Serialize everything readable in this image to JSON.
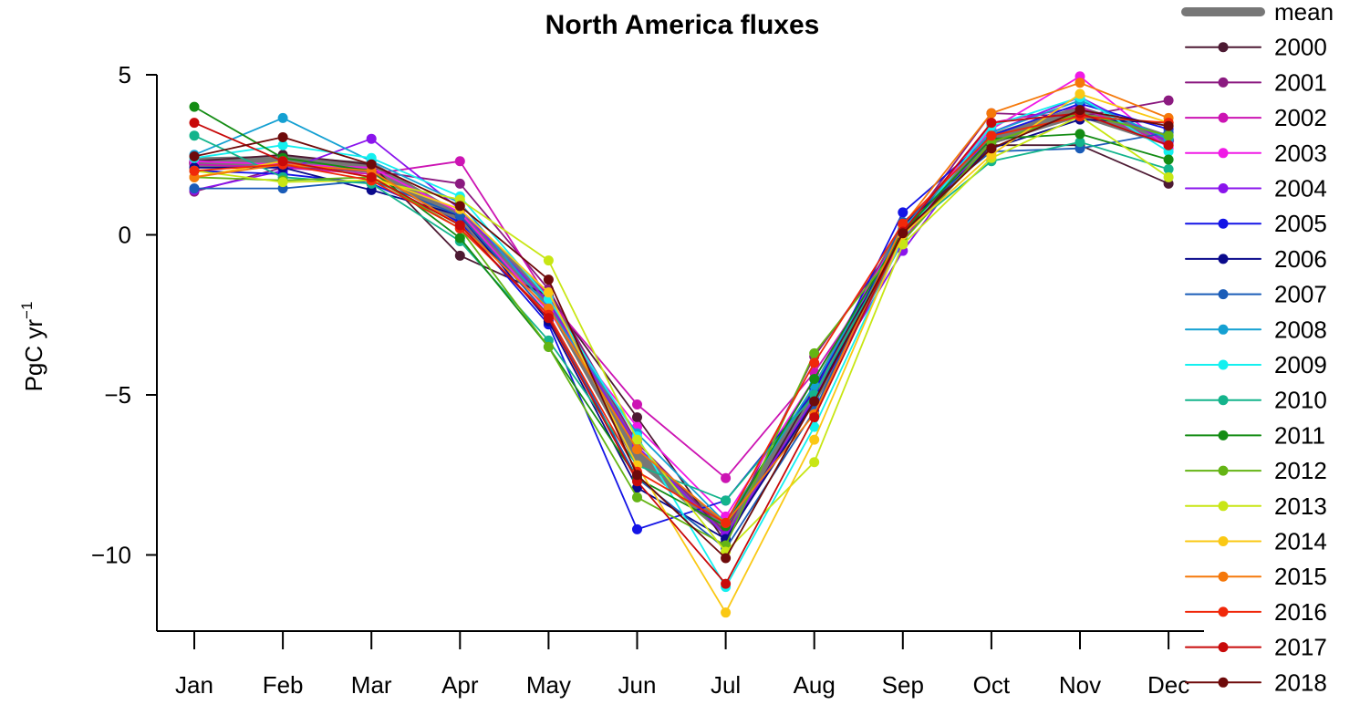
{
  "chart_data": {
    "type": "line",
    "title": "North America fluxes",
    "ylabel": "PgC yr",
    "ylabel_sup": "−1",
    "xlabel": "",
    "categories": [
      "Jan",
      "Feb",
      "Mar",
      "Apr",
      "May",
      "Jun",
      "Jul",
      "Aug",
      "Sep",
      "Oct",
      "Nov",
      "Dec"
    ],
    "ylim": [
      -12.3,
      5.6
    ],
    "yticks": [
      5,
      0,
      -5,
      -10
    ],
    "ytick_labels": [
      "5",
      "0",
      "−5",
      "−10"
    ],
    "grid": false,
    "legend_position": "right",
    "series": [
      {
        "name": "mean",
        "color": "#777777",
        "values": [
          2.25,
          2.3,
          2.1,
          0.5,
          -2.0,
          -6.9,
          -9.2,
          -5.0,
          0.1,
          3.0,
          3.85,
          2.95
        ]
      },
      {
        "name": "2000",
        "color": "#4D1A33",
        "values": [
          2.3,
          2.5,
          2.2,
          -0.65,
          -1.9,
          -5.7,
          -9.6,
          -4.8,
          0.1,
          2.8,
          2.8,
          1.6
        ]
      },
      {
        "name": "2001",
        "color": "#8B1A80",
        "values": [
          1.35,
          2.1,
          2.0,
          1.6,
          -1.7,
          -6.5,
          -9.3,
          -3.8,
          0.05,
          3.8,
          3.7,
          4.2
        ]
      },
      {
        "name": "2002",
        "color": "#CC14B3",
        "values": [
          2.2,
          2.1,
          1.9,
          2.3,
          -2.0,
          -5.3,
          -7.6,
          -4.3,
          -0.2,
          3.5,
          4.0,
          2.8
        ]
      },
      {
        "name": "2003",
        "color": "#F01AE6",
        "values": [
          2.3,
          2.2,
          2.1,
          0.7,
          -2.4,
          -6.0,
          -8.8,
          -4.5,
          0.2,
          3.3,
          4.95,
          2.7
        ]
      },
      {
        "name": "2004",
        "color": "#8A14EC",
        "values": [
          1.4,
          2.0,
          3.0,
          0.8,
          -2.1,
          -6.6,
          -9.4,
          -5.1,
          -0.5,
          3.2,
          4.3,
          2.9
        ]
      },
      {
        "name": "2005",
        "color": "#1414E6",
        "values": [
          2.0,
          1.9,
          1.6,
          0.4,
          -2.8,
          -9.2,
          -8.3,
          -4.9,
          0.7,
          3.1,
          4.1,
          3.3
        ]
      },
      {
        "name": "2006",
        "color": "#0A0A8C",
        "values": [
          2.1,
          2.1,
          1.4,
          0.6,
          -2.7,
          -7.9,
          -9.5,
          -5.2,
          0.3,
          2.7,
          3.6,
          3.5
        ]
      },
      {
        "name": "2007",
        "color": "#1A5CB8",
        "values": [
          1.45,
          1.45,
          1.7,
          0.6,
          -2.5,
          -7.6,
          -9.8,
          -5.5,
          0.4,
          2.6,
          2.7,
          3.2
        ]
      },
      {
        "name": "2008",
        "color": "#14A0D2",
        "values": [
          2.5,
          3.65,
          2.3,
          1.0,
          -2.3,
          -6.2,
          -9.0,
          -4.7,
          0.2,
          3.2,
          4.2,
          3.0
        ]
      },
      {
        "name": "2009",
        "color": "#14F0F0",
        "values": [
          2.4,
          2.8,
          2.4,
          1.2,
          -2.0,
          -6.3,
          -11.0,
          -6.0,
          -0.1,
          3.4,
          4.3,
          2.6
        ]
      },
      {
        "name": "2010",
        "color": "#14B48C",
        "values": [
          3.1,
          1.8,
          1.6,
          -0.2,
          -3.3,
          -7.2,
          -8.3,
          -5.0,
          0.05,
          2.3,
          2.9,
          2.05
        ]
      },
      {
        "name": "2011",
        "color": "#148C14",
        "values": [
          4.0,
          2.4,
          2.0,
          -0.1,
          -3.5,
          -7.6,
          -9.1,
          -4.5,
          0.1,
          3.0,
          3.15,
          2.35
        ]
      },
      {
        "name": "2012",
        "color": "#64B414",
        "values": [
          1.8,
          1.7,
          1.8,
          0.2,
          -3.5,
          -8.2,
          -9.7,
          -3.7,
          -0.2,
          2.9,
          3.8,
          3.1
        ]
      },
      {
        "name": "2013",
        "color": "#C8E614",
        "values": [
          2.0,
          1.65,
          1.7,
          1.1,
          -0.8,
          -6.4,
          -9.9,
          -7.1,
          -0.3,
          2.4,
          3.7,
          1.8
        ]
      },
      {
        "name": "2014",
        "color": "#FAC814",
        "values": [
          1.8,
          2.3,
          1.8,
          0.8,
          -1.8,
          -7.2,
          -11.8,
          -6.4,
          0.0,
          2.5,
          4.4,
          3.5
        ]
      },
      {
        "name": "2015",
        "color": "#F5780A",
        "values": [
          1.8,
          2.2,
          2.0,
          0.3,
          -2.3,
          -6.7,
          -9.0,
          -5.6,
          0.3,
          3.8,
          4.75,
          3.65
        ]
      },
      {
        "name": "2016",
        "color": "#F0280A",
        "values": [
          2.0,
          2.2,
          1.7,
          0.2,
          -2.5,
          -7.4,
          -9.0,
          -4.0,
          0.35,
          3.1,
          3.7,
          3.5
        ]
      },
      {
        "name": "2017",
        "color": "#C80A0A",
        "values": [
          3.5,
          2.3,
          1.8,
          0.3,
          -2.6,
          -7.7,
          -10.9,
          -5.7,
          0.1,
          3.5,
          3.8,
          2.8
        ]
      },
      {
        "name": "2018",
        "color": "#6E0A0A",
        "values": [
          2.45,
          3.05,
          2.2,
          0.9,
          -1.4,
          -7.5,
          -10.1,
          -5.2,
          0.05,
          2.7,
          3.9,
          3.4
        ]
      }
    ]
  }
}
